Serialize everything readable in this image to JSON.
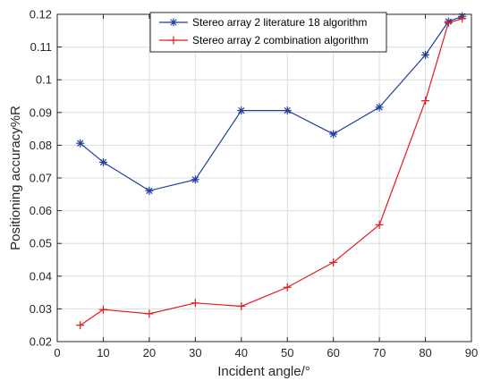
{
  "chart_data": {
    "type": "line",
    "xlabel": "Incident angle/°",
    "ylabel": "Positioning accuracy%R",
    "xlim": [
      0,
      90
    ],
    "ylim": [
      0.02,
      0.12
    ],
    "x_ticks": [
      "0",
      "10",
      "20",
      "30",
      "40",
      "50",
      "60",
      "70",
      "80",
      "90"
    ],
    "y_ticks": [
      "0.02",
      "0.03",
      "0.04",
      "0.05",
      "0.06",
      "0.07",
      "0.08",
      "0.09",
      "0.1",
      "0.11",
      "0.12"
    ],
    "grid": true,
    "legend_position": "top-center",
    "series": [
      {
        "name": "Stereo array 2 literature 18 algorithm",
        "color": "#1f3f9f",
        "marker": "asterisk",
        "x": [
          5,
          10,
          20,
          30,
          40,
          50,
          60,
          70,
          80,
          85,
          88
        ],
        "y": [
          0.0806,
          0.0748,
          0.0661,
          0.0695,
          0.0906,
          0.0906,
          0.0834,
          0.0916,
          0.1076,
          0.1178,
          0.1194
        ]
      },
      {
        "name": "Stereo array 2 combination algorithm",
        "color": "#e31a1c",
        "marker": "plus",
        "x": [
          5,
          10,
          20,
          30,
          40,
          50,
          60,
          70,
          80,
          85,
          88
        ],
        "y": [
          0.025,
          0.0298,
          0.0285,
          0.0318,
          0.0308,
          0.0366,
          0.0442,
          0.0557,
          0.0936,
          0.1174,
          0.1187
        ]
      }
    ]
  }
}
